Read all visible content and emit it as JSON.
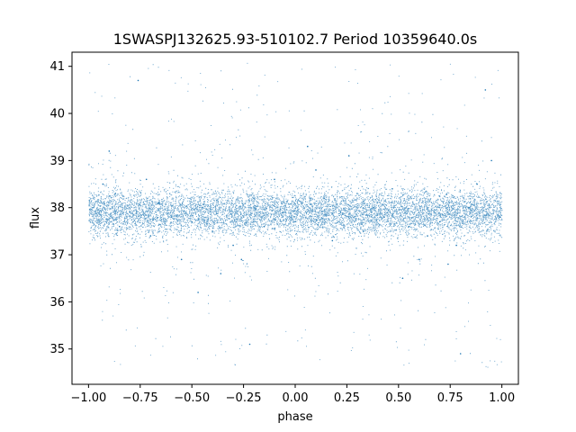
{
  "chart_data": {
    "type": "scatter",
    "title": "1SWASPJ132625.93-510102.7 Period 10359640.0s",
    "xlabel": "phase",
    "ylabel": "flux",
    "xlim": [
      -1.08,
      1.08
    ],
    "ylim": [
      34.25,
      41.3
    ],
    "xticks": [
      -1.0,
      -0.75,
      -0.5,
      -0.25,
      0.0,
      0.25,
      0.5,
      0.75,
      1.0
    ],
    "xtick_labels": [
      "−1.00",
      "−0.75",
      "−0.50",
      "−0.25",
      "0.00",
      "0.25",
      "0.50",
      "0.75",
      "1.00"
    ],
    "yticks": [
      35,
      36,
      37,
      38,
      39,
      40,
      41
    ],
    "ytick_labels": [
      "35",
      "36",
      "37",
      "38",
      "39",
      "40",
      "41"
    ],
    "grid": false,
    "marker_color": "#1f77b4",
    "series": [
      {
        "mean_flux": 37.9,
        "phase_range": [
          -1.0,
          1.0
        ],
        "dense_band": [
          37.0,
          38.7
        ],
        "flux_range": [
          34.6,
          41.1
        ],
        "x": [
          -0.98,
          -0.93,
          -0.9,
          -0.87,
          -0.85,
          -0.8,
          -0.76,
          -0.72,
          -0.7,
          -0.66,
          -0.6,
          -0.55,
          -0.5,
          -0.47,
          -0.45,
          -0.4,
          -0.36,
          -0.3,
          -0.26,
          -0.22,
          -0.2,
          -0.15,
          -0.1,
          -0.06,
          0.0,
          0.03,
          0.06,
          0.1,
          0.14,
          0.18,
          0.22,
          0.26,
          0.3,
          0.33,
          0.38,
          0.43,
          0.47,
          0.52,
          0.55,
          0.6,
          0.64,
          0.7,
          0.74,
          0.78,
          0.8,
          0.84,
          0.88,
          0.92,
          0.95,
          0.99
        ],
        "y": [
          38.0,
          38.5,
          39.2,
          38.3,
          37.6,
          37.9,
          40.7,
          38.6,
          37.4,
          38.1,
          37.8,
          36.9,
          37.7,
          36.2,
          38.0,
          37.5,
          36.6,
          37.2,
          36.9,
          35.1,
          38.2,
          37.6,
          38.6,
          37.9,
          37.7,
          38.1,
          39.3,
          38.8,
          38.2,
          37.3,
          37.9,
          39.1,
          38.3,
          37.5,
          38.0,
          37.8,
          38.4,
          36.5,
          37.6,
          36.9,
          37.4,
          37.7,
          36.8,
          37.2,
          34.9,
          38.0,
          38.5,
          40.5,
          39.0,
          37.8
        ]
      }
    ]
  }
}
